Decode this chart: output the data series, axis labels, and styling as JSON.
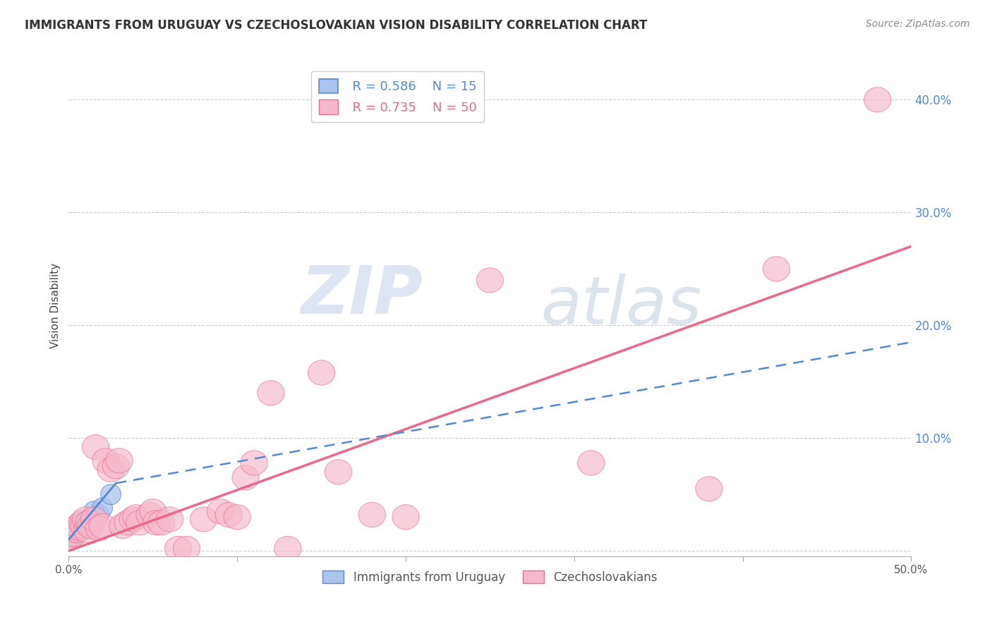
{
  "title": "IMMIGRANTS FROM URUGUAY VS CZECHOSLOVAKIAN VISION DISABILITY CORRELATION CHART",
  "source": "Source: ZipAtlas.com",
  "ylabel": "Vision Disability",
  "yticks": [
    0.0,
    0.1,
    0.2,
    0.3,
    0.4
  ],
  "ytick_labels": [
    "",
    "10.0%",
    "20.0%",
    "30.0%",
    "40.0%"
  ],
  "xlim": [
    0.0,
    0.5
  ],
  "ylim": [
    -0.005,
    0.44
  ],
  "legend_r_blue": "R = 0.586",
  "legend_n_blue": "N = 15",
  "legend_r_pink": "R = 0.735",
  "legend_n_pink": "N = 50",
  "legend_label_blue": "Immigrants from Uruguay",
  "legend_label_pink": "Czechoslovakians",
  "blue_scatter_x": [
    0.001,
    0.002,
    0.003,
    0.004,
    0.005,
    0.006,
    0.007,
    0.008,
    0.009,
    0.01,
    0.012,
    0.015,
    0.018,
    0.02,
    0.025
  ],
  "blue_scatter_y": [
    0.012,
    0.018,
    0.015,
    0.02,
    0.022,
    0.018,
    0.025,
    0.02,
    0.022,
    0.025,
    0.028,
    0.035,
    0.032,
    0.038,
    0.05
  ],
  "pink_scatter_x": [
    0.001,
    0.002,
    0.003,
    0.004,
    0.005,
    0.006,
    0.007,
    0.008,
    0.009,
    0.01,
    0.011,
    0.012,
    0.013,
    0.015,
    0.016,
    0.018,
    0.02,
    0.022,
    0.025,
    0.028,
    0.03,
    0.032,
    0.035,
    0.038,
    0.04,
    0.042,
    0.048,
    0.05,
    0.052,
    0.055,
    0.06,
    0.065,
    0.07,
    0.08,
    0.09,
    0.095,
    0.1,
    0.105,
    0.11,
    0.12,
    0.13,
    0.15,
    0.16,
    0.18,
    0.2,
    0.25,
    0.31,
    0.38,
    0.42,
    0.48
  ],
  "pink_scatter_y": [
    0.012,
    0.018,
    0.015,
    0.02,
    0.018,
    0.022,
    0.02,
    0.025,
    0.022,
    0.028,
    0.018,
    0.025,
    0.022,
    0.028,
    0.092,
    0.02,
    0.022,
    0.08,
    0.072,
    0.075,
    0.08,
    0.022,
    0.025,
    0.028,
    0.03,
    0.025,
    0.032,
    0.035,
    0.025,
    0.025,
    0.028,
    0.002,
    0.002,
    0.028,
    0.035,
    0.032,
    0.03,
    0.065,
    0.078,
    0.14,
    0.002,
    0.158,
    0.07,
    0.032,
    0.03,
    0.24,
    0.078,
    0.055,
    0.25,
    0.4
  ],
  "blue_line_x": [
    0.0,
    0.028
  ],
  "blue_line_y_start": 0.01,
  "blue_line_y_end": 0.06,
  "blue_dashed_line_x": [
    0.028,
    0.5
  ],
  "blue_dashed_line_y_start": 0.06,
  "blue_dashed_line_y_end": 0.185,
  "pink_line_x": [
    0.0,
    0.5
  ],
  "pink_line_y_start": 0.0,
  "pink_line_y_end": 0.27,
  "scatter_color_blue": "#aac4f0",
  "scatter_color_pink": "#f5b8cc",
  "line_color_blue": "#5588cc",
  "line_color_pink": "#ee6688",
  "background_color": "#ffffff",
  "watermark_zip": "ZIP",
  "watermark_atlas": "atlas",
  "grid_color": "#cccccc"
}
